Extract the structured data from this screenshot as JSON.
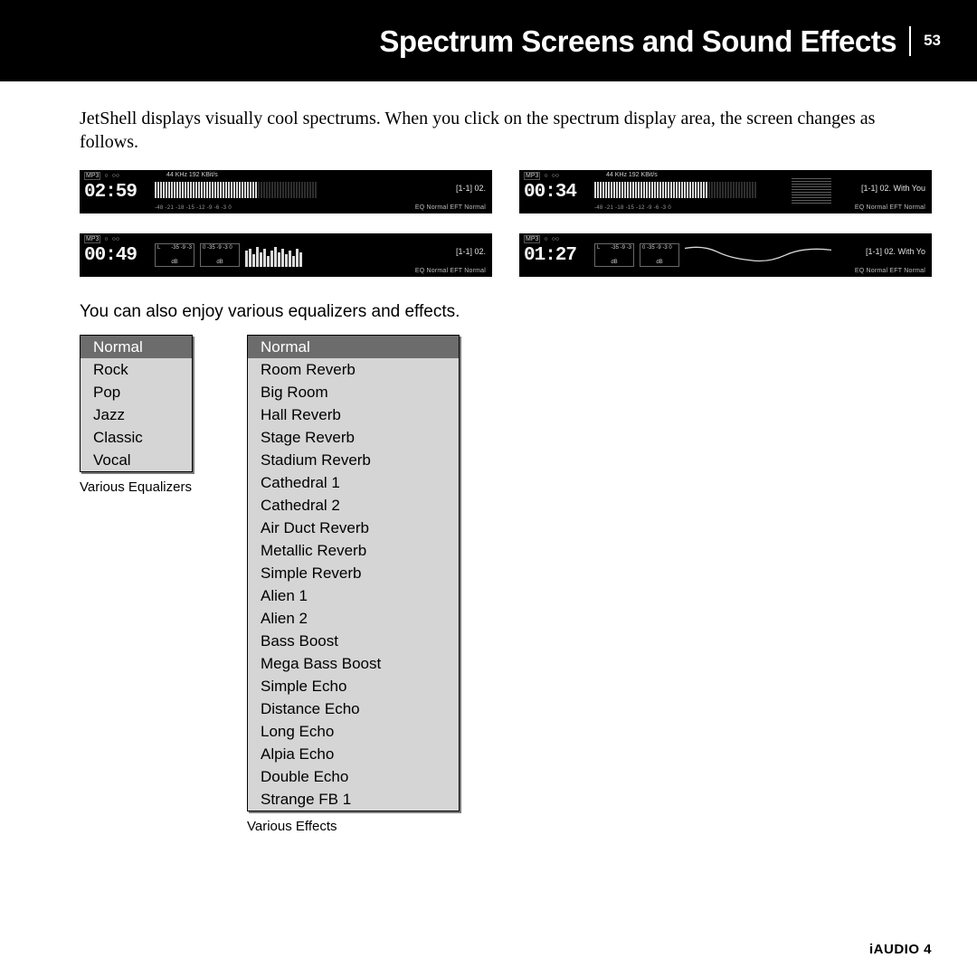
{
  "header": {
    "title": "Spectrum Screens and Sound Effects",
    "page_number": "53"
  },
  "paragraphs": {
    "intro": "JetShell displays visually cool spectrums. When you click on the spectrum display area, the screen changes as follows.",
    "eq_intro": "You can also enjoy various equalizers and effects."
  },
  "spectrum": {
    "format_label": "MP3",
    "audio_info": "44 KHz  192 KBit/s",
    "bottom_scale": "-48 -21 -18 -15 -12  -9  -6  -3   0",
    "eq_eft": "EQ Normal   EFT Normal",
    "db_scale_top": "-35  -9  -3",
    "db_scale_r": "0 -35  -9  -3  0",
    "db_label": "dB",
    "lr_l": "L",
    "lr_r": "R",
    "panels": [
      {
        "time": "02:59",
        "track": "[1-1] 02.",
        "style": "meter"
      },
      {
        "time": "00:34",
        "track": "[1-1] 02. With You",
        "style": "hlines"
      },
      {
        "time": "00:49",
        "track": "[1-1] 02.",
        "style": "db_bars"
      },
      {
        "time": "01:27",
        "track": "[1-1] 02. With Yo",
        "style": "db_wave"
      }
    ],
    "colors": {
      "panel_bg": "#000000",
      "text": "#e0e0e0",
      "dim_text": "#9a9a9a",
      "bar": "#dcdcdc"
    }
  },
  "equalizer_menu": {
    "caption": "Various Equalizers",
    "items": [
      "Normal",
      "Rock",
      "Pop",
      "Jazz",
      "Classic",
      "Vocal"
    ],
    "selected_index": 0,
    "colors": {
      "bg": "#d5d5d5",
      "selected_bg": "#6c6c6c",
      "selected_fg": "#ffffff",
      "border": "#000000"
    }
  },
  "effects_menu": {
    "caption": "Various Effects",
    "items": [
      "Normal",
      "Room Reverb",
      "Big Room",
      "Hall Reverb",
      "Stage Reverb",
      "Stadium Reverb",
      "Cathedral 1",
      "Cathedral 2",
      "Air Duct Reverb",
      "Metallic Reverb",
      "Simple Reverb",
      "Alien 1",
      "Alien 2",
      "Bass Boost",
      "Mega Bass Boost",
      "Simple Echo",
      "Distance Echo",
      "Long Echo",
      "Alpia Echo",
      "Double Echo",
      "Strange FB 1"
    ],
    "selected_index": 0
  },
  "footer": {
    "product": "iAUDIO 4"
  }
}
